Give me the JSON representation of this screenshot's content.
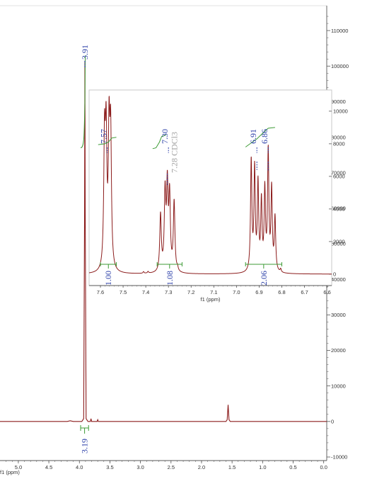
{
  "chart_data": [
    {
      "type": "line",
      "xlabel": "f1 (ppm)",
      "x_reversed": true,
      "xlim": [
        5.3,
        -0.05
      ],
      "ylim": [
        -11000,
        117000
      ],
      "xticks": [
        "5.0",
        "4.5",
        "4.0",
        "3.5",
        "3.0",
        "2.5",
        "2.0",
        "1.5",
        "1.0",
        "0.5",
        "0.0"
      ],
      "yticks": [
        "110000",
        "100000",
        "90000",
        "80000",
        "70000",
        "60000",
        "50000",
        "40000",
        "30000",
        "20000",
        "10000",
        "0",
        "-10000"
      ],
      "series": [
        {
          "x": [
            5.3,
            4.2,
            4.15,
            4.1,
            3.96,
            3.93,
            3.915,
            3.91,
            3.905,
            3.89,
            3.86,
            3.82,
            3.81,
            3.8,
            3.71,
            3.7,
            3.69,
            1.6,
            1.58,
            1.565,
            1.55,
            1.53,
            -0.05
          ],
          "y": [
            0,
            0,
            200,
            0,
            0,
            800,
            60000,
            101500,
            60000,
            800,
            0,
            0,
            800,
            0,
            0,
            500,
            0,
            0,
            500,
            4700,
            500,
            0,
            0
          ]
        }
      ],
      "peak_labels": [
        {
          "x": 3.91,
          "text": "3.91"
        }
      ],
      "integrals": [
        {
          "x_start": 3.98,
          "x_end": 3.85,
          "value": "3.19"
        }
      ]
    },
    {
      "type": "line",
      "xlabel": "f1 (ppm)",
      "x_reversed": true,
      "xlim": [
        7.65,
        6.58
      ],
      "ylim": [
        -700,
        11300
      ],
      "xticks": [
        "7.6",
        "7.5",
        "7.4",
        "7.3",
        "7.2",
        "7.1",
        "7.0",
        "6.9",
        "6.8",
        "6.7",
        "6.6"
      ],
      "yticks": [
        "10000",
        "8000",
        "6000",
        "4000",
        "2000",
        "0"
      ],
      "series": [
        {
          "peaks": [
            {
              "x": 7.582,
              "y": 7700,
              "w": 0.004
            },
            {
              "x": 7.575,
              "y": 7700,
              "w": 0.004
            },
            {
              "x": 7.562,
              "y": 8000,
              "w": 0.004
            },
            {
              "x": 7.555,
              "y": 7900,
              "w": 0.004
            },
            {
              "x": 7.335,
              "y": 3500,
              "w": 0.004
            },
            {
              "x": 7.315,
              "y": 4700,
              "w": 0.004
            },
            {
              "x": 7.305,
              "y": 5000,
              "w": 0.004
            },
            {
              "x": 7.295,
              "y": 4500,
              "w": 0.004
            },
            {
              "x": 7.275,
              "y": 4300,
              "w": 0.004
            },
            {
              "x": 7.26,
              "y": 200,
              "w": 0.003
            },
            {
              "x": 7.39,
              "y": 100,
              "w": 0.003
            },
            {
              "x": 7.41,
              "y": 100,
              "w": 0.003
            },
            {
              "x": 6.935,
              "y": 6800,
              "w": 0.0035
            },
            {
              "x": 6.92,
              "y": 6200,
              "w": 0.0035
            },
            {
              "x": 6.905,
              "y": 5300,
              "w": 0.0035
            },
            {
              "x": 6.89,
              "y": 4200,
              "w": 0.0035
            },
            {
              "x": 6.875,
              "y": 4900,
              "w": 0.0035
            },
            {
              "x": 6.86,
              "y": 7300,
              "w": 0.0035
            },
            {
              "x": 6.845,
              "y": 5000,
              "w": 0.0035
            },
            {
              "x": 6.83,
              "y": 3300,
              "w": 0.0035
            },
            {
              "x": 6.805,
              "y": 200,
              "w": 0.003
            }
          ]
        }
      ],
      "peak_labels": [
        {
          "x": 7.57,
          "text": "7.57"
        },
        {
          "x": 7.3,
          "text": "7.30"
        },
        {
          "x": 7.28,
          "text": "7.28 CDCl3"
        },
        {
          "x": 6.91,
          "text": "6.91"
        },
        {
          "x": 6.86,
          "text": "6.86"
        }
      ],
      "integrals": [
        {
          "x_start": 7.6,
          "x_end": 7.53,
          "value": "1.00"
        },
        {
          "x_start": 7.35,
          "x_end": 7.24,
          "value": "1.08"
        },
        {
          "x_start": 6.96,
          "x_end": 6.8,
          "value": "2.06"
        }
      ]
    }
  ],
  "colors": {
    "spectrum": "#8c1c1c",
    "integral": "#3d9b35",
    "label": "#2b3fa8",
    "solvent": "#a0a0a0",
    "axis": "#555555"
  }
}
